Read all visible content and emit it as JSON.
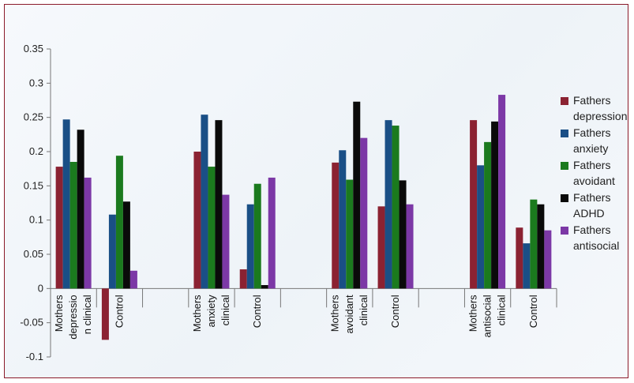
{
  "chart_data": {
    "type": "bar",
    "title": "",
    "xlabel": "",
    "ylabel": "",
    "ylim": [
      -0.1,
      0.35
    ],
    "yticks": [
      -0.1,
      -0.05,
      0,
      0.05,
      0.1,
      0.15,
      0.2,
      0.25,
      0.3,
      0.35
    ],
    "ytick_labels": [
      "-0.1",
      "-0.05",
      "0",
      "0.05",
      "0.1",
      "0.15",
      "0.2",
      "0.25",
      "0.3",
      "0.35"
    ],
    "grid": false,
    "legend_position": "right",
    "categories": [
      [
        "Mothers",
        "depressio",
        "n clinical"
      ],
      [
        "Control"
      ],
      [],
      [
        "Mothers",
        "anxiety",
        "clinical"
      ],
      [
        "Control"
      ],
      [],
      [
        "Mothers",
        "avoidant",
        "clinical"
      ],
      [
        "Control"
      ],
      [],
      [
        "Mothers",
        "antisocial",
        "clinical"
      ],
      [
        "Control"
      ]
    ],
    "series": [
      {
        "name": [
          "Fathers",
          "depression"
        ],
        "color": "#8b2232",
        "values": [
          0.178,
          -0.075,
          null,
          0.2,
          0.028,
          null,
          0.184,
          0.12,
          null,
          0.246,
          0.089
        ]
      },
      {
        "name": [
          "Fathers",
          "anxiety"
        ],
        "color": "#1a4f86",
        "values": [
          0.247,
          0.108,
          null,
          0.254,
          0.123,
          null,
          0.202,
          0.246,
          null,
          0.18,
          0.066
        ]
      },
      {
        "name": [
          "Fathers",
          "avoidant"
        ],
        "color": "#1b7a1e",
        "values": [
          0.185,
          0.194,
          null,
          0.178,
          0.153,
          null,
          0.159,
          0.238,
          null,
          0.214,
          0.13
        ]
      },
      {
        "name": [
          "Fathers",
          "ADHD"
        ],
        "color": "#0a0a0a",
        "values": [
          0.232,
          0.127,
          null,
          0.246,
          0.005,
          null,
          0.273,
          0.158,
          null,
          0.244,
          0.123
        ]
      },
      {
        "name": [
          "Fathers",
          "antisocial"
        ],
        "color": "#7c38a6",
        "values": [
          0.162,
          0.026,
          null,
          0.137,
          0.162,
          null,
          0.22,
          0.123,
          null,
          0.283,
          0.085
        ]
      }
    ]
  }
}
